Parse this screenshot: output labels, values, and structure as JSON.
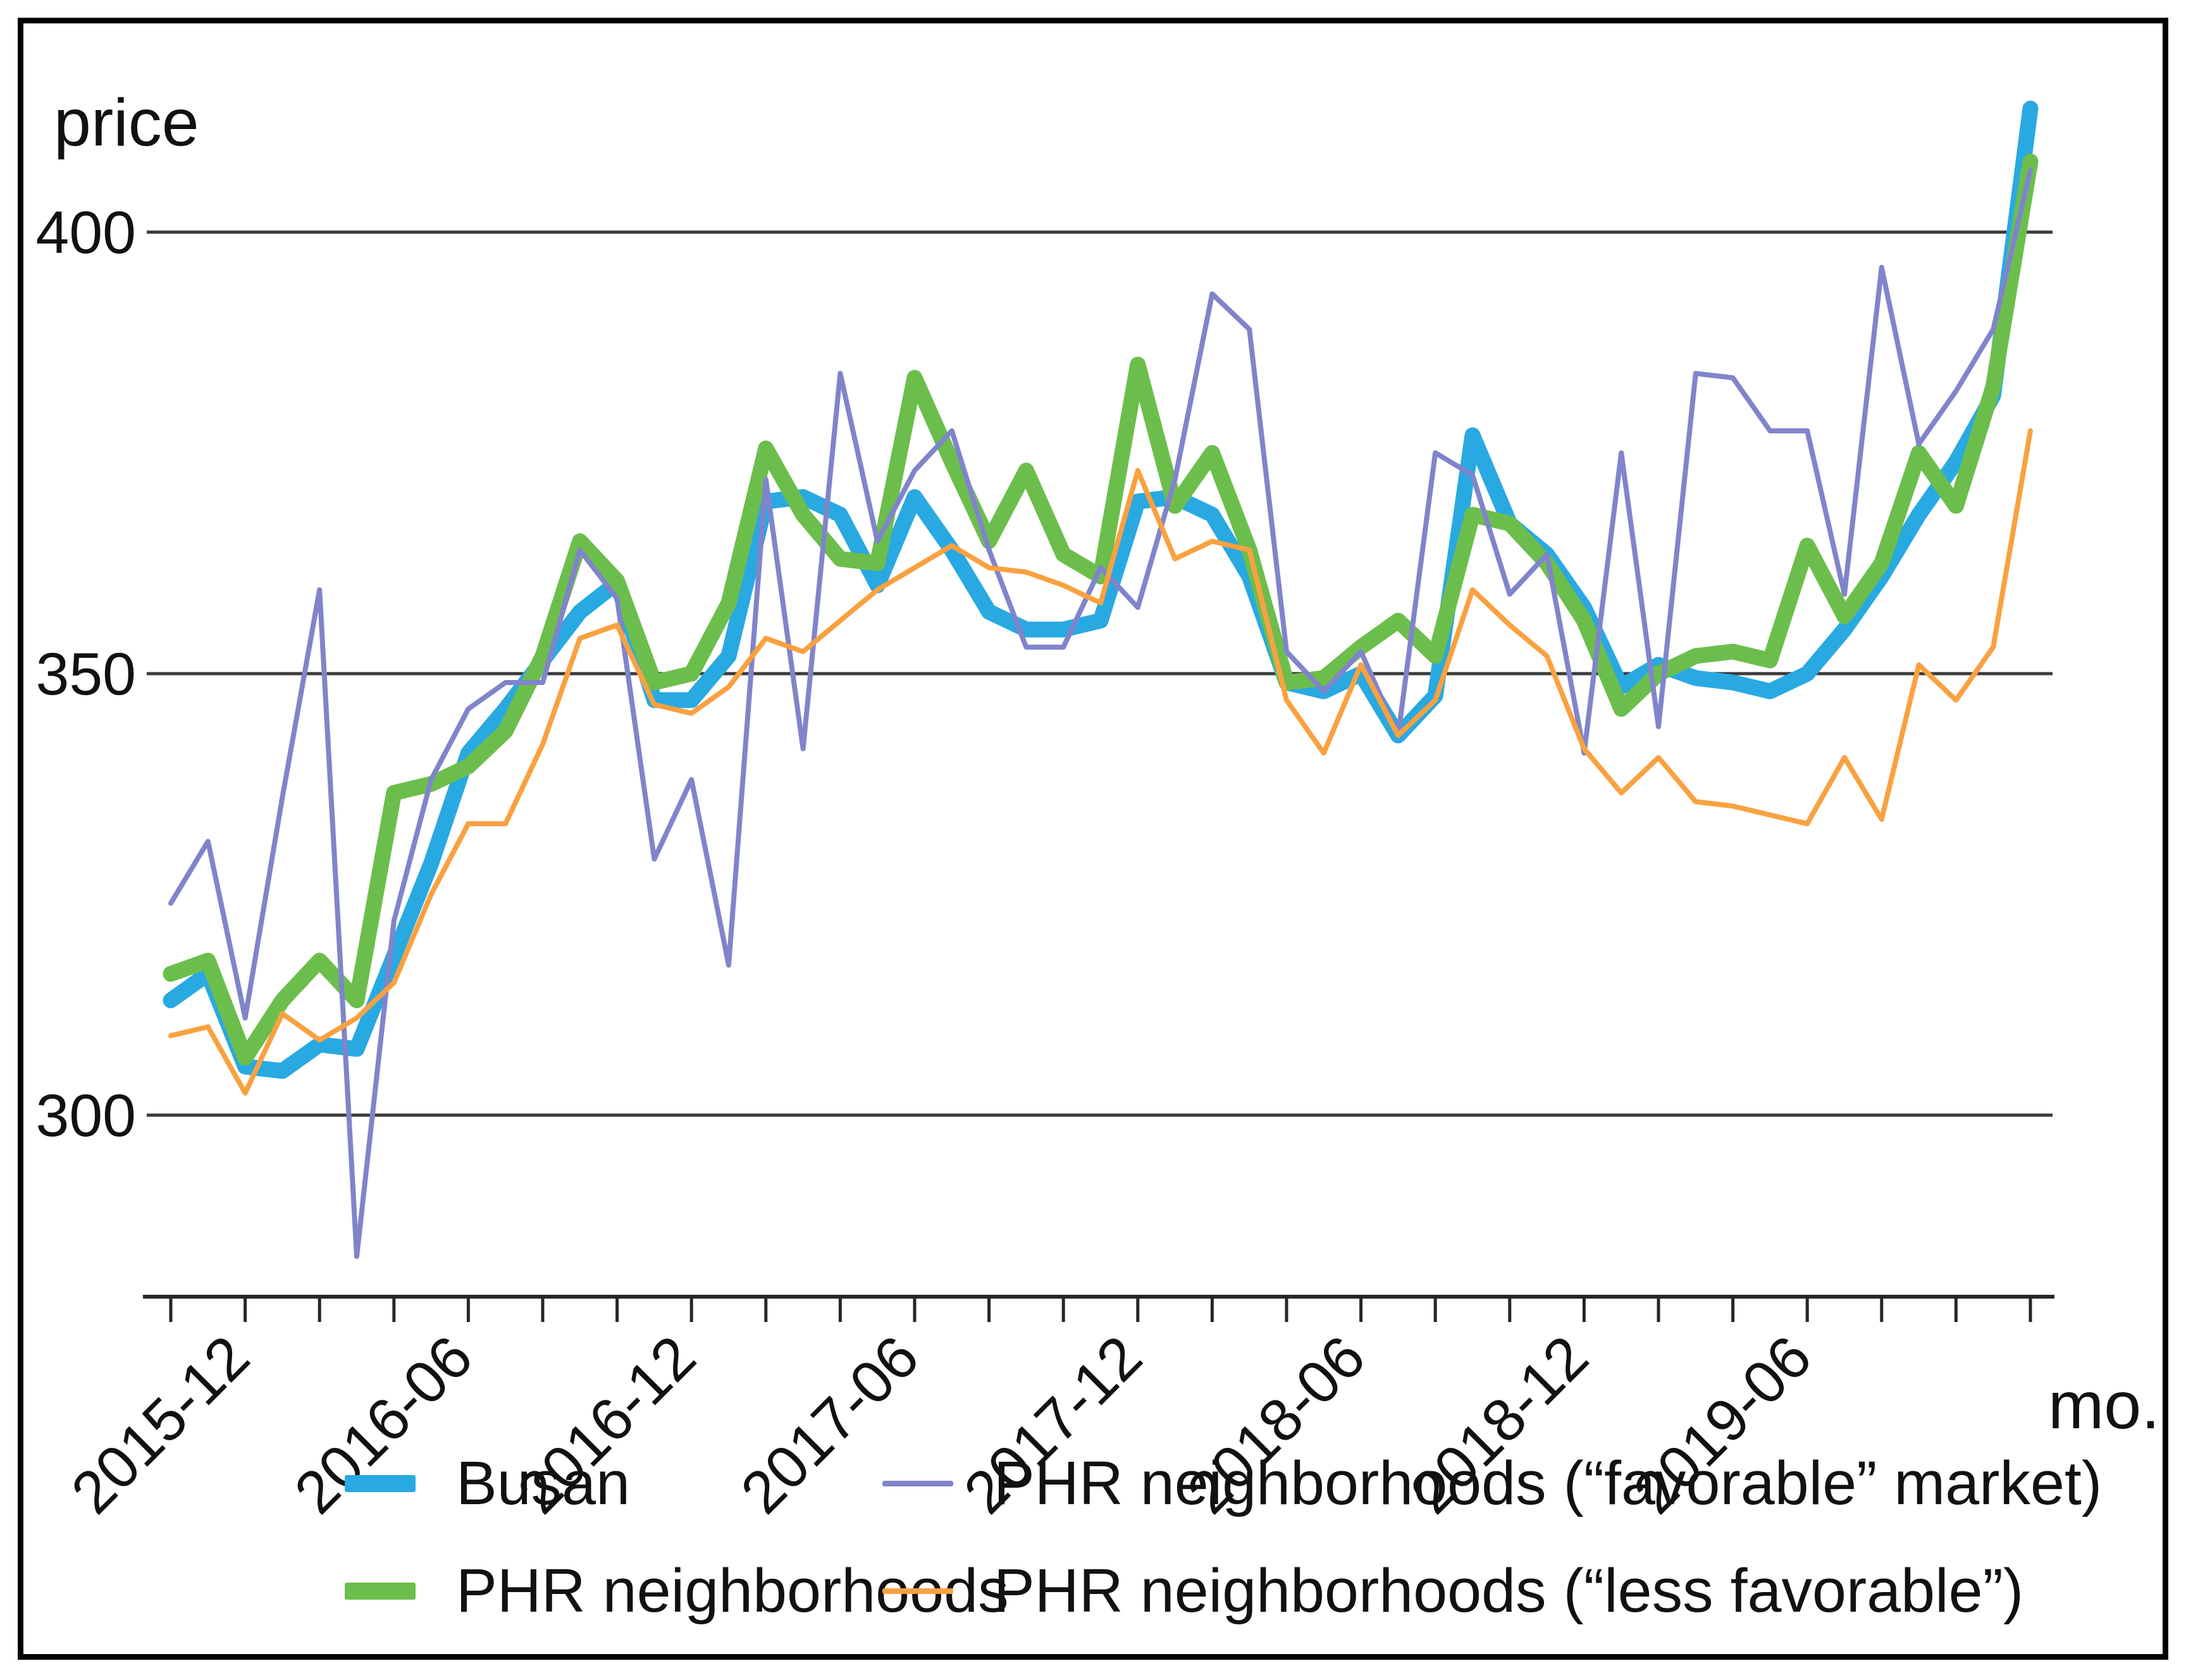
{
  "page": {
    "y_axis_title": "price",
    "x_axis_title": "mo."
  },
  "chart_data": {
    "type": "line",
    "title": "",
    "ylabel": "price",
    "xlabel": "mo.",
    "grid": "horizontal-only",
    "legend_position": "bottom-two-columns",
    "y_axis": {
      "ticks": [
        400,
        350,
        300
      ],
      "range_visible": [
        279,
        415
      ]
    },
    "x_axis": {
      "tick_step_months": 2,
      "label_indices": [
        2,
        8,
        14,
        20,
        26,
        32,
        38,
        44
      ]
    },
    "x": [
      "2015-10",
      "2015-11",
      "2015-12",
      "2016-01",
      "2016-02",
      "2016-03",
      "2016-04",
      "2016-05",
      "2016-06",
      "2016-07",
      "2016-08",
      "2016-09",
      "2016-10",
      "2016-11",
      "2016-12",
      "2017-01",
      "2017-02",
      "2017-03",
      "2017-04",
      "2017-05",
      "2017-06",
      "2017-07",
      "2017-08",
      "2017-09",
      "2017-10",
      "2017-11",
      "2017-12",
      "2018-01",
      "2018-02",
      "2018-03",
      "2018-04",
      "2018-05",
      "2018-06",
      "2018-07",
      "2018-08",
      "2018-09",
      "2018-10",
      "2018-11",
      "2018-12",
      "2019-01",
      "2019-02",
      "2019-03",
      "2019-04",
      "2019-05",
      "2019-06",
      "2019-07",
      "2019-08",
      "2019-09",
      "2019-10",
      "2019-11",
      "2019-12"
    ],
    "series": [
      {
        "key": "busan",
        "name": "Busan",
        "color": "#29A9E1",
        "width": 25,
        "values": [
          313,
          316,
          305.5,
          305,
          308,
          307.5,
          318,
          328.5,
          341,
          346,
          351.5,
          357,
          360.3,
          347,
          347,
          352,
          369.5,
          370,
          368,
          360,
          370,
          364,
          357,
          355,
          355,
          356,
          369.5,
          370,
          368,
          361,
          349,
          348,
          350,
          343,
          347.5,
          377,
          367,
          363.5,
          357.5,
          348.5,
          351,
          349.5,
          349,
          348,
          350,
          355,
          361,
          368,
          374,
          381.5,
          414
        ]
      },
      {
        "key": "phr-neighborhoods",
        "name": "PHR neighborhoods",
        "color": "#6CBE4C",
        "width": 25,
        "values": [
          316,
          317.5,
          306.5,
          313,
          317.5,
          313,
          336.5,
          337.5,
          339.5,
          343.5,
          352,
          365,
          360.5,
          349,
          350,
          358,
          375.5,
          368,
          363,
          362.5,
          383.5,
          374,
          365,
          373,
          363.5,
          361,
          385,
          369,
          375,
          364,
          349,
          349.5,
          353,
          356,
          352,
          368,
          367,
          362.5,
          356,
          346,
          350,
          352,
          352.5,
          351.5,
          364.5,
          356.5,
          362.5,
          375,
          369,
          382.5,
          408
        ]
      },
      {
        "key": "phr-favorable",
        "name": "PHR neighborhoods (“favorable” market)",
        "color": "#8084CB",
        "width": 8,
        "values": [
          324,
          331,
          311,
          336,
          359.5,
          284,
          322,
          338,
          346,
          349,
          349,
          364,
          358.5,
          329,
          338,
          317,
          372,
          341.5,
          384,
          365,
          373,
          377.5,
          364,
          353,
          353,
          362,
          357.5,
          372,
          393,
          389,
          352.5,
          348,
          352.5,
          343,
          375,
          372.5,
          359,
          363.5,
          341,
          375,
          344,
          384,
          383.5,
          377.5,
          377.5,
          359,
          396,
          376,
          382,
          389,
          407
        ]
      },
      {
        "key": "phr-less-favorable",
        "name": "PHR neighborhoods (“less favorable”)",
        "color": "#F9A140",
        "width": 8,
        "values": [
          309,
          310,
          302.5,
          311.5,
          308.5,
          311,
          315,
          325,
          333,
          333,
          342,
          354,
          355.5,
          346.5,
          345.5,
          348.5,
          354,
          352.5,
          356,
          359.5,
          362,
          364.5,
          362,
          361.5,
          360,
          358,
          373,
          363,
          365,
          364,
          347,
          341,
          351,
          343,
          347,
          359.5,
          355.5,
          352,
          341.5,
          336.5,
          340.5,
          335.5,
          335,
          334,
          333,
          340.5,
          333.5,
          351,
          347,
          353,
          377.5
        ]
      }
    ],
    "legend_order": [
      "busan",
      "phr-favorable",
      "phr-neighborhoods",
      "phr-less-favorable"
    ]
  }
}
